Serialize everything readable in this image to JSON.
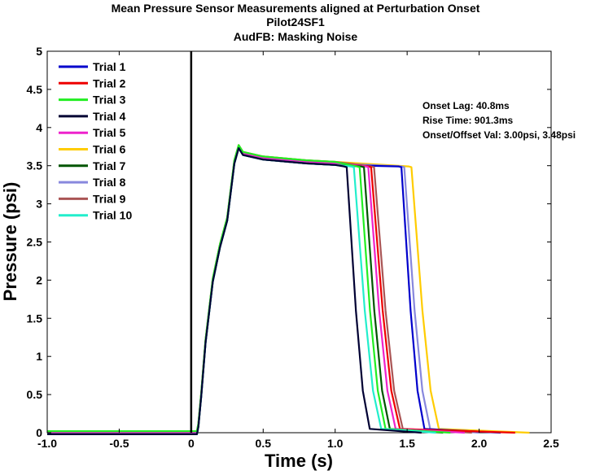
{
  "chart_data": {
    "type": "line",
    "title_lines": [
      "Mean Pressure Sensor Measurements aligned at Perturbation Onset",
      "Pilot24SF1",
      "AudFB: Masking Noise"
    ],
    "xlabel": "Time (s)",
    "ylabel": "Pressure (psi)",
    "xlim": [
      -1.0,
      2.5
    ],
    "ylim": [
      0,
      5
    ],
    "xticks": [
      "-1.0",
      "-0.5",
      "0",
      "0.5",
      "1.0",
      "1.5",
      "2.0",
      "2.5"
    ],
    "yticks": [
      "0",
      "0.5",
      "1",
      "1.5",
      "2",
      "2.5",
      "3",
      "3.5",
      "4",
      "4.5",
      "5"
    ],
    "grid": false,
    "legend_position": "top-left",
    "onset_line_x": 0,
    "annotations": [
      "Onset Lag: 40.8ms",
      "Rise Time: 901.3ms",
      "Onset/Offset Val: 3.00psi, 3.48psi"
    ],
    "shared_rise": {
      "x": [
        -1.0,
        0.0,
        0.04,
        0.05,
        0.07,
        0.1,
        0.15,
        0.2,
        0.25,
        0.3,
        0.33,
        0.36,
        0.5,
        0.8,
        1.0
      ],
      "y": [
        0.0,
        0.0,
        0.0,
        0.1,
        0.5,
        1.2,
        2.0,
        2.45,
        2.8,
        3.55,
        3.75,
        3.66,
        3.6,
        3.55,
        3.53
      ]
    },
    "series": [
      {
        "name": "Trial 1",
        "color": "#0000cc",
        "drop_start": 1.46,
        "drop_end": 1.62,
        "tail_end": 2.15
      },
      {
        "name": "Trial 2",
        "color": "#ee0000",
        "drop_start": 1.25,
        "drop_end": 1.45,
        "tail_end": 2.25
      },
      {
        "name": "Trial 3",
        "color": "#22ee22",
        "drop_start": 1.17,
        "drop_end": 1.35,
        "tail_end": 1.8
      },
      {
        "name": "Trial 4",
        "color": "#000033",
        "drop_start": 1.08,
        "drop_end": 1.24,
        "tail_end": 1.6
      },
      {
        "name": "Trial 5",
        "color": "#ee22cc",
        "drop_start": 1.23,
        "drop_end": 1.42,
        "tail_end": 1.9
      },
      {
        "name": "Trial 6",
        "color": "#ffcc00",
        "drop_start": 1.53,
        "drop_end": 1.72,
        "tail_end": 2.35
      },
      {
        "name": "Trial 7",
        "color": "#005500",
        "drop_start": 1.2,
        "drop_end": 1.38,
        "tail_end": 1.75
      },
      {
        "name": "Trial 8",
        "color": "#8888dd",
        "drop_start": 1.48,
        "drop_end": 1.66,
        "tail_end": 2.0
      },
      {
        "name": "Trial 9",
        "color": "#aa5555",
        "drop_start": 1.27,
        "drop_end": 1.47,
        "tail_end": 1.95
      },
      {
        "name": "Trial 10",
        "color": "#22eecc",
        "drop_start": 1.13,
        "drop_end": 1.32,
        "tail_end": 1.7
      }
    ]
  }
}
